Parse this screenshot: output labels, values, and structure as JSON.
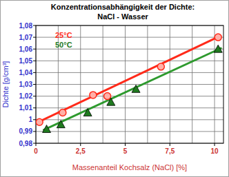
{
  "chart_data": {
    "type": "scatter",
    "title": "Konzentrationsabhängigkeit der Dichte:",
    "subtitle": "NaCl - Wasser",
    "x_label": "Massenanteil Kochsalz (NaCl) [%]",
    "y_label": "Dichte [g/cm³]",
    "xlim": [
      0,
      10.5
    ],
    "xticks": [
      0,
      {
        "value": 2.5,
        "label": "2,5"
      },
      5,
      {
        "value": 7.5,
        "label": "7,5"
      },
      10
    ],
    "ylim": [
      0.98,
      1.08
    ],
    "yticks": [
      {
        "value": 0.98,
        "label": "0,98"
      },
      {
        "value": 0.99,
        "label": "0,99"
      },
      1,
      {
        "value": 1.01,
        "label": "1,01"
      },
      {
        "value": 1.02,
        "label": "1,02"
      },
      {
        "value": 1.03,
        "label": "1,03"
      },
      {
        "value": 1.04,
        "label": "1,04"
      },
      {
        "value": 1.05,
        "label": "1,05"
      },
      {
        "value": 1.06,
        "label": "1,06"
      },
      {
        "value": 1.07,
        "label": "1,07"
      },
      {
        "value": 1.08,
        "label": "1,08"
      }
    ],
    "grid": true,
    "series": [
      {
        "type": "line",
        "color": "#ff2a1a",
        "x": [
          0,
          10.3
        ],
        "values": [
          0.997,
          1.071
        ]
      },
      {
        "type": "line",
        "color": "#2e9a2e",
        "x": [
          0.4,
          10.4
        ],
        "values": [
          0.991,
          1.061
        ]
      },
      {
        "name": "25°C",
        "type": "scatter",
        "marker": "circle",
        "color": "#ff2a1a",
        "x": [
          0.2,
          1.5,
          3.2,
          4.0,
          7.0,
          10.2
        ],
        "values": [
          0.998,
          1.006,
          1.021,
          1.02,
          1.045,
          1.07
        ]
      },
      {
        "name": "50°C",
        "type": "scatter",
        "marker": "triangle",
        "color": "#1f7a1f",
        "x": [
          0.6,
          1.4,
          2.9,
          4.2,
          5.6,
          10.2
        ],
        "values": [
          0.992,
          0.996,
          1.006,
          1.015,
          1.026,
          1.06
        ]
      }
    ]
  }
}
